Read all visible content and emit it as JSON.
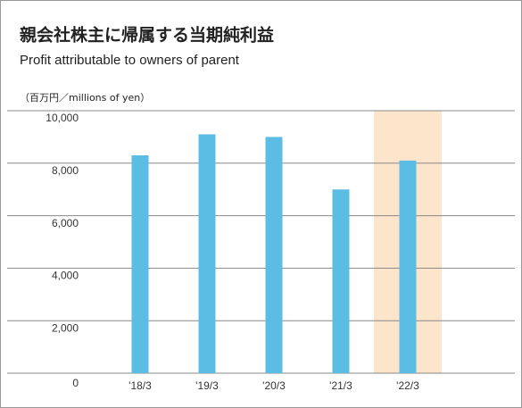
{
  "chart_data": {
    "type": "bar",
    "title": "親会社株主に帰属する当期純利益",
    "subtitle": "Profit attributable to owners of parent",
    "unit_label": "（百万円／millions of yen）",
    "categories": [
      "'18/3",
      "'19/3",
      "'20/3",
      "'21/3",
      "'22/3"
    ],
    "values": [
      8300,
      9100,
      9000,
      7000,
      8100
    ],
    "color": "#5bbde4",
    "highlight": "'22/3",
    "highlight_color": "#fde5cc",
    "ylim": [
      0,
      10000
    ],
    "yticks": [
      0,
      {
        "value": 2000,
        "label": "2,000"
      },
      {
        "value": 4000,
        "label": "4,000"
      },
      {
        "value": 6000,
        "label": "6,000"
      },
      {
        "value": 8000,
        "label": "8,000"
      },
      {
        "value": 10000,
        "label": "10,000"
      }
    ],
    "grid": true
  }
}
